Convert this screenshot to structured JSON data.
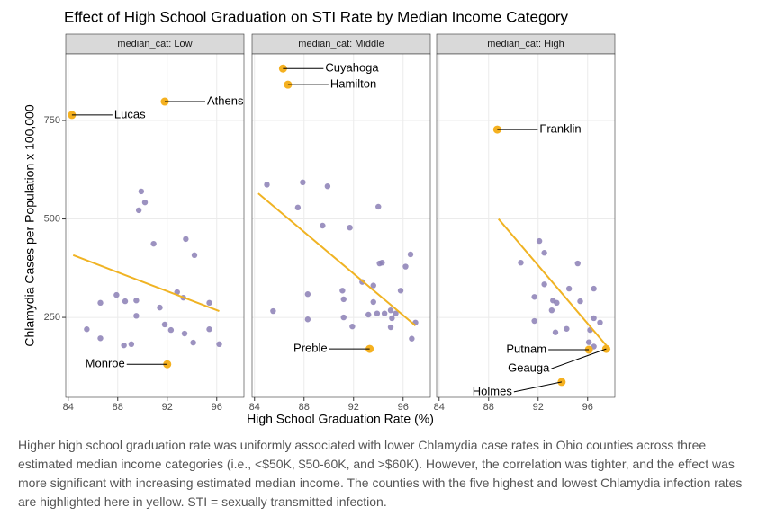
{
  "title": "Effect of High School Graduation on STI Rate by Median Income Category",
  "xlabel": "High School Graduation Rate (%)",
  "ylabel": "Chlamydia Cases per Population x 100,000",
  "caption": "Higher high school graduation rate was uniformly associated with lower Chlamydia case rates in Ohio counties across three estimated median income categories (i.e., <$50K, $50-60K, and >$60K). However, the correlation was tighter, and the effect was more significant with increasing estimated median income. The counties with the five highest and lowest Chlamydia infection rates are highlighted here in yellow. STI = sexually transmitted infection.",
  "chart_data": [
    {
      "type": "scatter",
      "strip": "median_cat: Low",
      "xlim": [
        83.8,
        98.2
      ],
      "xticks": [
        84,
        88,
        92,
        96
      ],
      "ylim": [
        47,
        919
      ],
      "yticks": [
        250,
        500,
        750
      ],
      "grid": true,
      "points": {
        "color": "#8b7fb5",
        "x": [
          89.9,
          90.2,
          89.7,
          90.9,
          93.5,
          94.2,
          85.5,
          86.6,
          86.6,
          87.9,
          88.6,
          89.5,
          89.5,
          88.5,
          89.1,
          91.4,
          91.8,
          92.3,
          92.8,
          93.4,
          94.1,
          93.3,
          95.4,
          95.4,
          96.2
        ],
        "values": [
          570,
          542,
          522,
          437,
          449,
          408,
          220,
          197,
          287,
          307,
          291,
          293,
          254,
          179,
          182,
          275,
          232,
          218,
          314,
          209,
          186,
          300,
          220,
          287,
          182
        ]
      },
      "highlighted": {
        "color": "#f5b120",
        "x": [
          84.3,
          91.8,
          92.0
        ],
        "values": [
          764,
          798,
          131
        ],
        "labels": [
          "Lucas",
          "Athens",
          "Monroe"
        ]
      },
      "trend": {
        "color": "#f0b323",
        "x": [
          84.4,
          96.2
        ],
        "values": [
          408,
          266
        ]
      }
    },
    {
      "type": "scatter",
      "strip": "median_cat: Middle",
      "xlim": [
        83.8,
        98.2
      ],
      "xticks": [
        84,
        88,
        92,
        96
      ],
      "ylim": [
        47,
        919
      ],
      "grid": true,
      "points": {
        "color": "#8b7fb5",
        "x": [
          85.0,
          87.9,
          89.9,
          87.5,
          89.5,
          91.7,
          94.0,
          85.5,
          88.3,
          88.3,
          91.1,
          91.2,
          91.2,
          92.7,
          93.2,
          93.6,
          93.9,
          94.1,
          94.3,
          93.6,
          94.5,
          95.0,
          95.1,
          95.4,
          95.0,
          95.8,
          96.2,
          96.6,
          97.0,
          96.7,
          91.9
        ],
        "values": [
          587,
          593,
          583,
          529,
          483,
          478,
          531,
          266,
          309,
          245,
          318,
          296,
          250,
          340,
          257,
          331,
          260,
          387,
          389,
          289,
          260,
          268,
          248,
          260,
          225,
          318,
          379,
          410,
          237,
          196,
          227
        ]
      },
      "highlighted": {
        "color": "#f5b120",
        "x": [
          86.3,
          86.7,
          93.3
        ],
        "values": [
          882,
          841,
          170
        ],
        "labels": [
          "Cuyahoga",
          "Hamilton",
          "Preble"
        ]
      },
      "trend": {
        "color": "#f0b323",
        "x": [
          84.3,
          97.0
        ],
        "values": [
          565,
          229
        ]
      }
    },
    {
      "type": "scatter",
      "strip": "median_cat: High",
      "xlim": [
        83.8,
        98.2
      ],
      "xticks": [
        84,
        88,
        92,
        96
      ],
      "ylim": [
        47,
        919
      ],
      "grid": true,
      "points": {
        "color": "#8b7fb5",
        "x": [
          92.1,
          92.5,
          90.6,
          95.2,
          91.7,
          92.5,
          93.2,
          94.5,
          96.5,
          91.7,
          93.1,
          93.5,
          94.3,
          96.2,
          96.5,
          97.0,
          95.4,
          93.4,
          96.1,
          96.5
        ],
        "values": [
          444,
          414,
          389,
          387,
          302,
          334,
          293,
          323,
          323,
          241,
          268,
          287,
          221,
          218,
          248,
          237,
          291,
          212,
          187,
          176
        ]
      },
      "highlighted": {
        "color": "#f5b120",
        "x": [
          88.7,
          96.1,
          97.5,
          93.9
        ],
        "values": [
          727,
          168,
          170,
          86
        ],
        "labels": [
          "Franklin",
          "Putnam",
          "Geauga",
          "Holmes"
        ]
      },
      "trend": {
        "color": "#f0b323",
        "x": [
          88.8,
          97.8
        ],
        "values": [
          500,
          168
        ]
      }
    }
  ]
}
